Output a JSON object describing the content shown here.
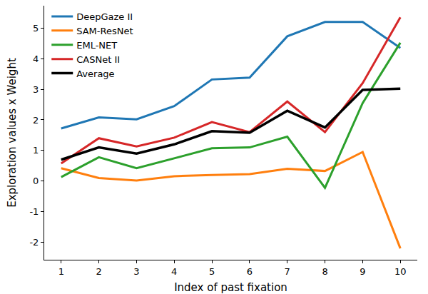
{
  "chart_data": {
    "type": "line",
    "x_label": "Index of past fixation",
    "y_label": "Exploration values x Weight",
    "x": [
      1,
      2,
      3,
      4,
      5,
      6,
      7,
      8,
      9,
      10
    ],
    "series": [
      {
        "name": "DeepGaze II",
        "color": "#1f77b4",
        "values": [
          1.72,
          2.08,
          2.02,
          2.45,
          3.32,
          3.38,
          4.73,
          5.2,
          5.2,
          4.35
        ]
      },
      {
        "name": "SAM-ResNet",
        "color": "#ff7f0e",
        "values": [
          0.42,
          0.1,
          0.02,
          0.16,
          0.2,
          0.23,
          0.4,
          0.33,
          0.95,
          -2.2
        ]
      },
      {
        "name": "EML-NET",
        "color": "#2ca02c",
        "values": [
          0.13,
          0.78,
          0.42,
          0.75,
          1.07,
          1.1,
          1.45,
          -0.22,
          2.55,
          4.52
        ]
      },
      {
        "name": "CASNet II",
        "color": "#d62728",
        "values": [
          0.58,
          1.4,
          1.13,
          1.42,
          1.93,
          1.6,
          2.6,
          1.6,
          3.2,
          5.35
        ]
      },
      {
        "name": "Average",
        "color": "#000000",
        "values": [
          0.7,
          1.1,
          0.9,
          1.2,
          1.63,
          1.58,
          2.3,
          1.75,
          2.98,
          3.02
        ]
      }
    ],
    "xlim": [
      0.55,
      10.45
    ],
    "ylim": [
      -2.57,
      5.73
    ],
    "xticks": [
      1,
      2,
      3,
      4,
      5,
      6,
      7,
      8,
      9,
      10
    ],
    "yticks": [
      -2,
      -1,
      0,
      1,
      2,
      3,
      4,
      5
    ],
    "grid": false,
    "legend": "upper left"
  }
}
